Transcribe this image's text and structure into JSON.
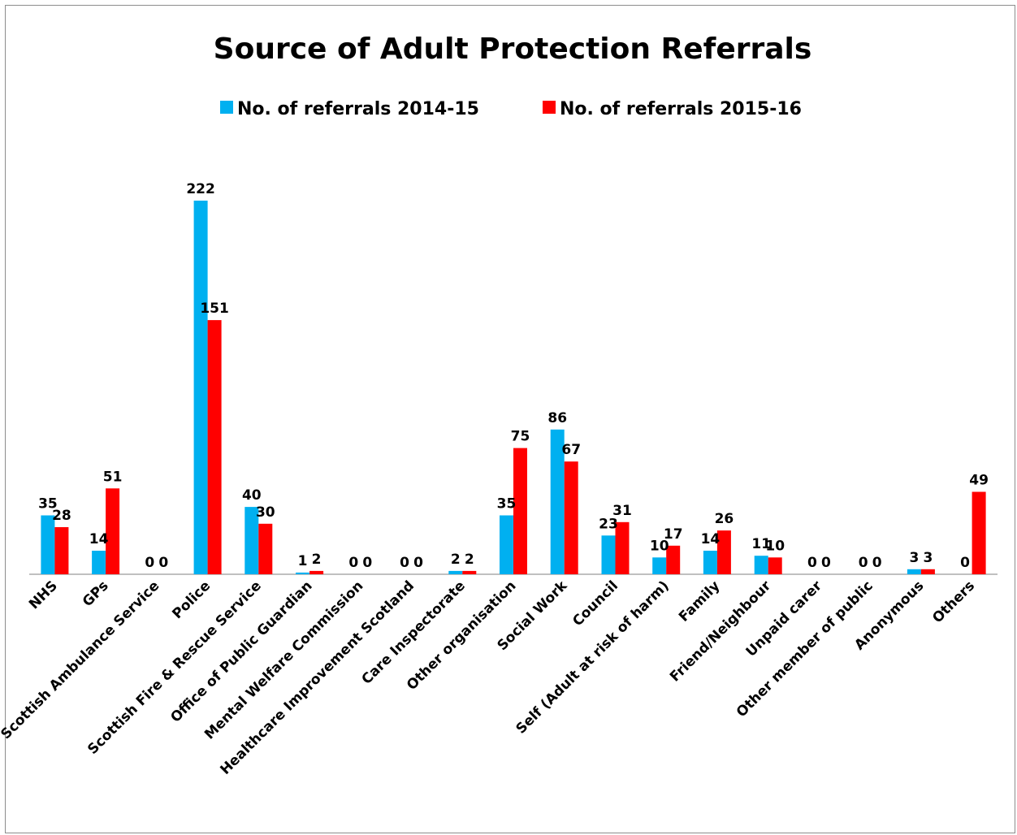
{
  "chart_data": {
    "type": "bar",
    "title": "Source of Adult Protection Referrals",
    "categories": [
      "NHS",
      "GPs",
      "Scottish Ambulance Service",
      "Police",
      "Scottish Fire & Rescue Service",
      "Office of Public Guardian",
      "Mental Welfare Commission",
      "Healthcare Improvement Scotland",
      "Care Inspectorate",
      "Other organisation",
      "Social Work",
      "Council",
      "Self (Adult at risk of harm)",
      "Family",
      "Friend/Neighbour",
      "Unpaid carer",
      "Other member of public",
      "Anonymous",
      "Others"
    ],
    "series": [
      {
        "name": "No. of referrals 2014-15",
        "color": "#00b0f0",
        "values": [
          35,
          14,
          0,
          222,
          40,
          1,
          0,
          0,
          2,
          35,
          86,
          23,
          10,
          14,
          11,
          0,
          0,
          3,
          0
        ]
      },
      {
        "name": "No. of referrals 2015-16",
        "color": "#ff0000",
        "values": [
          28,
          51,
          0,
          151,
          30,
          2,
          0,
          0,
          2,
          75,
          67,
          31,
          17,
          26,
          10,
          0,
          0,
          3,
          49
        ]
      }
    ],
    "ylim": [
      0,
      222
    ],
    "grid": false,
    "legend_position": "top",
    "data_labels": true
  }
}
